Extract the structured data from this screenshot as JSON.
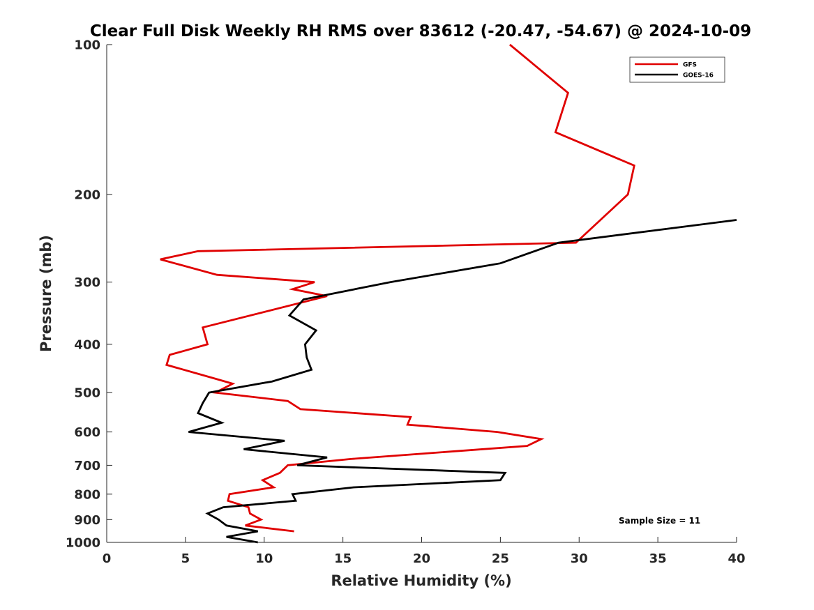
{
  "chart_data": {
    "type": "line",
    "title": "Clear Full Disk Weekly RH RMS over 83612 (-20.47, -54.67) @ 2024-10-09",
    "xlabel": "Relative Humidity (%)",
    "ylabel": "Pressure (mb)",
    "xlim": [
      0,
      40
    ],
    "ylim": [
      100,
      1000
    ],
    "yscale": "log",
    "y_reversed": true,
    "grid": false,
    "legend_position": "top-right",
    "x_ticks": [
      "0",
      "5",
      "10",
      "15",
      "20",
      "25",
      "30",
      "35",
      "40"
    ],
    "y_ticks": [
      "100",
      "200",
      "300",
      "400",
      "500",
      "600",
      "700",
      "800",
      "900",
      "1000"
    ],
    "series": [
      {
        "name": "GFS",
        "color": "#e00000",
        "points": [
          {
            "x": 25.6,
            "y": 100
          },
          {
            "x": 29.3,
            "y": 125
          },
          {
            "x": 28.5,
            "y": 150
          },
          {
            "x": 33.5,
            "y": 175
          },
          {
            "x": 33.1,
            "y": 200
          },
          {
            "x": 29.8,
            "y": 250
          },
          {
            "x": 5.8,
            "y": 260
          },
          {
            "x": 3.4,
            "y": 270
          },
          {
            "x": 7.0,
            "y": 290
          },
          {
            "x": 13.2,
            "y": 300
          },
          {
            "x": 11.8,
            "y": 310
          },
          {
            "x": 14.0,
            "y": 320
          },
          {
            "x": 6.1,
            "y": 370
          },
          {
            "x": 6.4,
            "y": 400
          },
          {
            "x": 4.0,
            "y": 420
          },
          {
            "x": 3.8,
            "y": 440
          },
          {
            "x": 7.0,
            "y": 470
          },
          {
            "x": 8.0,
            "y": 480
          },
          {
            "x": 6.9,
            "y": 500
          },
          {
            "x": 11.5,
            "y": 520
          },
          {
            "x": 12.3,
            "y": 540
          },
          {
            "x": 19.3,
            "y": 560
          },
          {
            "x": 19.1,
            "y": 580
          },
          {
            "x": 24.8,
            "y": 600
          },
          {
            "x": 27.6,
            "y": 620
          },
          {
            "x": 26.7,
            "y": 640
          },
          {
            "x": 15.5,
            "y": 680
          },
          {
            "x": 11.5,
            "y": 700
          },
          {
            "x": 11.0,
            "y": 725
          },
          {
            "x": 9.9,
            "y": 750
          },
          {
            "x": 10.6,
            "y": 775
          },
          {
            "x": 7.8,
            "y": 800
          },
          {
            "x": 7.7,
            "y": 825
          },
          {
            "x": 9.0,
            "y": 850
          },
          {
            "x": 9.1,
            "y": 875
          },
          {
            "x": 9.8,
            "y": 900
          },
          {
            "x": 8.8,
            "y": 925
          },
          {
            "x": 11.9,
            "y": 950
          }
        ]
      },
      {
        "name": "GOES-16",
        "color": "#000000",
        "points": [
          {
            "x": 40.0,
            "y": 225
          },
          {
            "x": 28.7,
            "y": 250
          },
          {
            "x": 25.0,
            "y": 275
          },
          {
            "x": 18.0,
            "y": 300
          },
          {
            "x": 12.5,
            "y": 325
          },
          {
            "x": 11.6,
            "y": 350
          },
          {
            "x": 13.3,
            "y": 375
          },
          {
            "x": 12.6,
            "y": 400
          },
          {
            "x": 12.7,
            "y": 425
          },
          {
            "x": 13.0,
            "y": 450
          },
          {
            "x": 10.5,
            "y": 475
          },
          {
            "x": 6.5,
            "y": 500
          },
          {
            "x": 6.1,
            "y": 525
          },
          {
            "x": 5.8,
            "y": 550
          },
          {
            "x": 7.3,
            "y": 575
          },
          {
            "x": 5.2,
            "y": 600
          },
          {
            "x": 11.3,
            "y": 625
          },
          {
            "x": 8.7,
            "y": 650
          },
          {
            "x": 14.0,
            "y": 675
          },
          {
            "x": 12.1,
            "y": 700
          },
          {
            "x": 25.3,
            "y": 725
          },
          {
            "x": 25.0,
            "y": 750
          },
          {
            "x": 15.7,
            "y": 775
          },
          {
            "x": 11.8,
            "y": 800
          },
          {
            "x": 12.0,
            "y": 825
          },
          {
            "x": 7.4,
            "y": 850
          },
          {
            "x": 6.4,
            "y": 875
          },
          {
            "x": 7.1,
            "y": 900
          },
          {
            "x": 7.6,
            "y": 925
          },
          {
            "x": 9.6,
            "y": 950
          },
          {
            "x": 7.6,
            "y": 975
          },
          {
            "x": 9.6,
            "y": 1000
          }
        ]
      }
    ],
    "annotations": [
      {
        "text": "Sample Size = 11",
        "position": "bottom-right"
      }
    ]
  }
}
